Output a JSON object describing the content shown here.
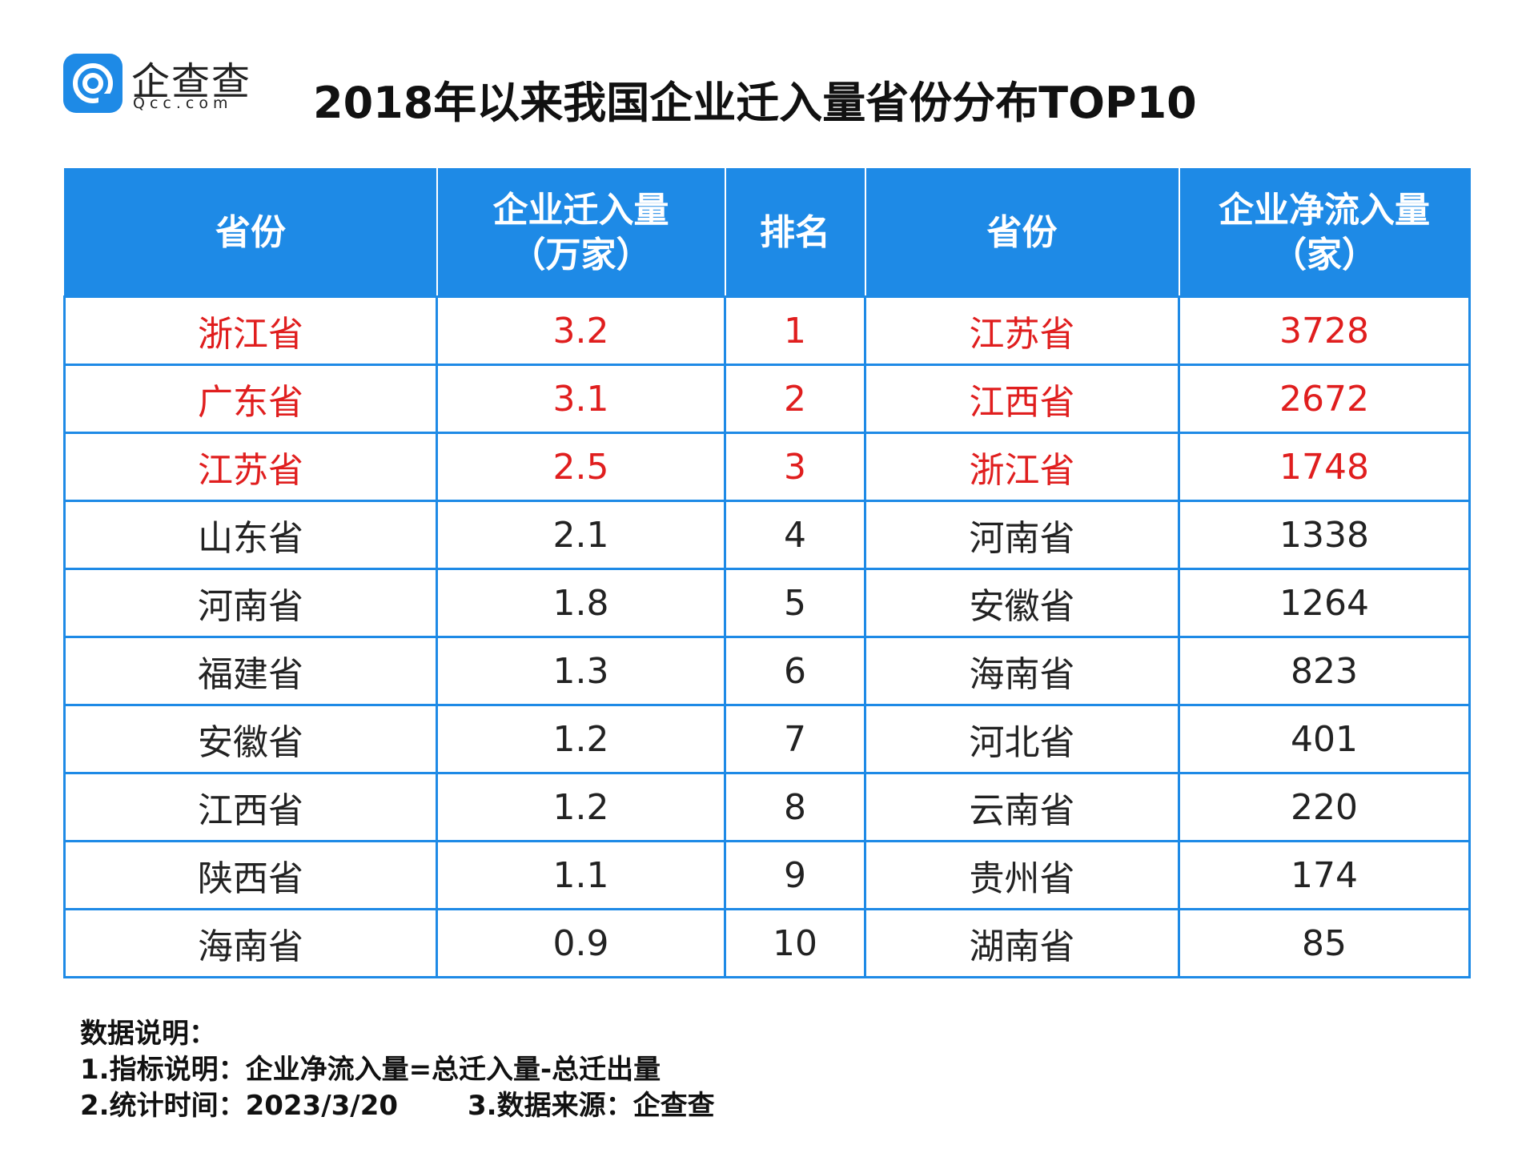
{
  "header": {
    "logo_text": "企查查",
    "logo_sub": "Qcc.com",
    "title": "2018年以来我国企业迁入量省份分布TOP10"
  },
  "table": {
    "headers": [
      [
        "省份"
      ],
      [
        "企业迁入量",
        "（万家）"
      ],
      [
        "排名"
      ],
      [
        "省份"
      ],
      [
        "企业净流入量",
        "（家）"
      ]
    ],
    "rows": [
      [
        "浙江省",
        3.2,
        1,
        "江苏省",
        3728
      ],
      [
        "广东省",
        3.1,
        2,
        "江西省",
        2672
      ],
      [
        "江苏省",
        2.5,
        3,
        "浙江省",
        1748
      ],
      [
        "山东省",
        2.1,
        4,
        "河南省",
        1338
      ],
      [
        "河南省",
        1.8,
        5,
        "安徽省",
        1264
      ],
      [
        "福建省",
        1.3,
        6,
        "海南省",
        823
      ],
      [
        "安徽省",
        1.2,
        7,
        "河北省",
        401
      ],
      [
        "江西省",
        1.2,
        8,
        "云南省",
        220
      ],
      [
        "陕西省",
        1.1,
        9,
        "贵州省",
        174
      ],
      [
        "海南省",
        0.9,
        10,
        "湖南省",
        85
      ]
    ]
  },
  "notes": {
    "heading": "数据说明：",
    "line1": "1.指标说明：企业净流入量=总迁入量-总迁出量",
    "line2": "2.统计时间：2023/3/20",
    "line3": "3.数据来源：企查查"
  }
}
